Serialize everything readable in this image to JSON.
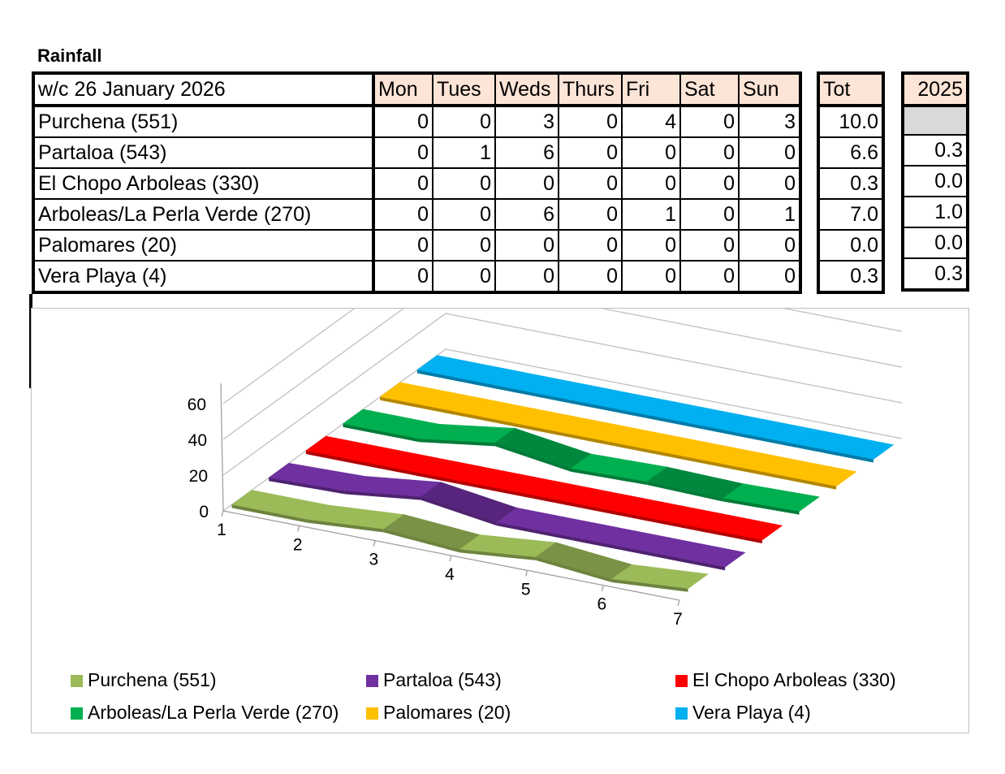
{
  "title": "Rainfall",
  "table": {
    "header_label": "w/c 26 January 2026",
    "days": [
      "Mon",
      "Tues",
      "Weds",
      "Thurs",
      "Fri",
      "Sat",
      "Sun"
    ],
    "tot_label": "Tot",
    "year_label": "2025",
    "rows": [
      {
        "name": "Purchena (551)",
        "values": [
          "0",
          "0",
          "3",
          "0",
          "4",
          "0",
          "3"
        ],
        "tot": "10.0",
        "prev": ""
      },
      {
        "name": "Partaloa (543)",
        "values": [
          "0",
          "1",
          "6",
          "0",
          "0",
          "0",
          "0"
        ],
        "tot": "6.6",
        "prev": "0.3"
      },
      {
        "name": "El Chopo Arboleas (330)",
        "values": [
          "0",
          "0",
          "0",
          "0",
          "0",
          "0",
          "0"
        ],
        "tot": "0.3",
        "prev": "0.0"
      },
      {
        "name": "Arboleas/La Perla Verde (270)",
        "values": [
          "0",
          "0",
          "6",
          "0",
          "1",
          "0",
          "1"
        ],
        "tot": "7.0",
        "prev": "1.0"
      },
      {
        "name": "Palomares (20)",
        "values": [
          "0",
          "0",
          "0",
          "0",
          "0",
          "0",
          "0"
        ],
        "tot": "0.0",
        "prev": "0.0"
      },
      {
        "name": "Vera Playa (4)",
        "values": [
          "0",
          "0",
          "0",
          "0",
          "0",
          "0",
          "0"
        ],
        "tot": "0.3",
        "prev": "0.3"
      }
    ]
  },
  "chart_data": {
    "type": "line",
    "style": "3d-ribbon",
    "categories": [
      "1",
      "2",
      "3",
      "4",
      "5",
      "6",
      "7"
    ],
    "y_ticks": [
      "0",
      "20",
      "40",
      "60"
    ],
    "ylim": [
      0,
      60
    ],
    "grid": true,
    "legend_position": "bottom",
    "series": [
      {
        "name": "Purchena (551)",
        "color": "#9bbb59",
        "values": [
          0,
          0,
          3,
          0,
          4,
          0,
          3
        ]
      },
      {
        "name": "Partaloa (543)",
        "color": "#7030a0",
        "values": [
          0,
          1,
          6,
          0,
          0,
          0,
          0
        ]
      },
      {
        "name": "El Chopo Arboleas (330)",
        "color": "#ff0000",
        "values": [
          0,
          0,
          0,
          0,
          0,
          0,
          0
        ]
      },
      {
        "name": "Arboleas/La Perla Verde (270)",
        "color": "#00b050",
        "values": [
          0,
          0,
          6,
          0,
          1,
          0,
          1
        ]
      },
      {
        "name": "Palomares (20)",
        "color": "#ffc000",
        "values": [
          0,
          0,
          0,
          0,
          0,
          0,
          0
        ]
      },
      {
        "name": "Vera Playa (4)",
        "color": "#00b0f0",
        "values": [
          0,
          0,
          0,
          0,
          0,
          0,
          0
        ]
      }
    ]
  }
}
